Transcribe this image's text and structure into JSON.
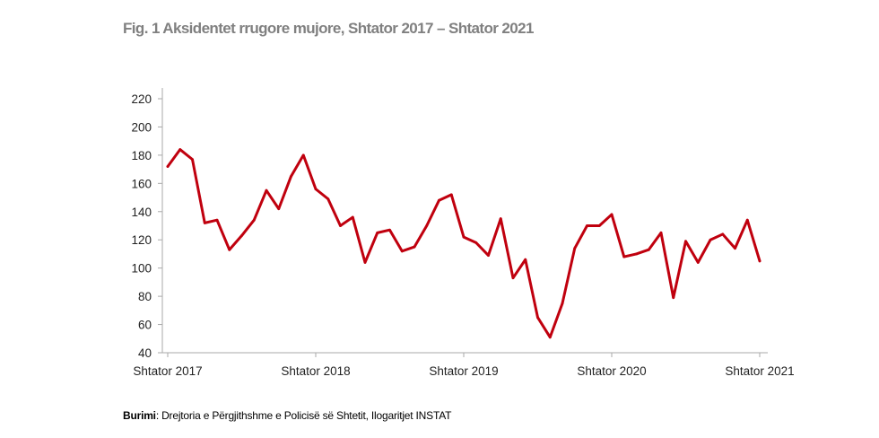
{
  "chart_data": {
    "type": "line",
    "title": "Fig. 1 Aksidentet rrugore mujore, Shtator 2017 – Shtator 2021",
    "xlabel": "",
    "ylabel": "",
    "ylim": [
      40,
      220
    ],
    "yticks": [
      40,
      60,
      80,
      100,
      120,
      140,
      160,
      180,
      200,
      220
    ],
    "x_ticks": [
      {
        "index": 0,
        "label": "Shtator 2017"
      },
      {
        "index": 12,
        "label": "Shtator 2018"
      },
      {
        "index": 24,
        "label": "Shtator 2019"
      },
      {
        "index": 36,
        "label": "Shtator 2020"
      },
      {
        "index": 48,
        "label": "Shtator 2021"
      }
    ],
    "series": [
      {
        "name": "Aksidentet rrugore",
        "color": "#c0000e",
        "values": [
          172,
          184,
          177,
          132,
          134,
          113,
          123,
          134,
          155,
          142,
          165,
          180,
          156,
          149,
          130,
          136,
          104,
          125,
          127,
          112,
          115,
          130,
          148,
          152,
          122,
          118,
          109,
          135,
          93,
          106,
          65,
          51,
          75,
          114,
          130,
          130,
          138,
          108,
          110,
          113,
          125,
          79,
          119,
          104,
          120,
          124,
          114,
          134,
          105
        ]
      }
    ]
  },
  "source": {
    "label": "Burimi",
    "text": ": Drejtoria e Përgjithshme e Policisë së Shtetit, Ilogaritjet INSTAT"
  },
  "colors": {
    "title": "#808080",
    "axis": "#aaaaaa",
    "line": "#c0000e"
  }
}
